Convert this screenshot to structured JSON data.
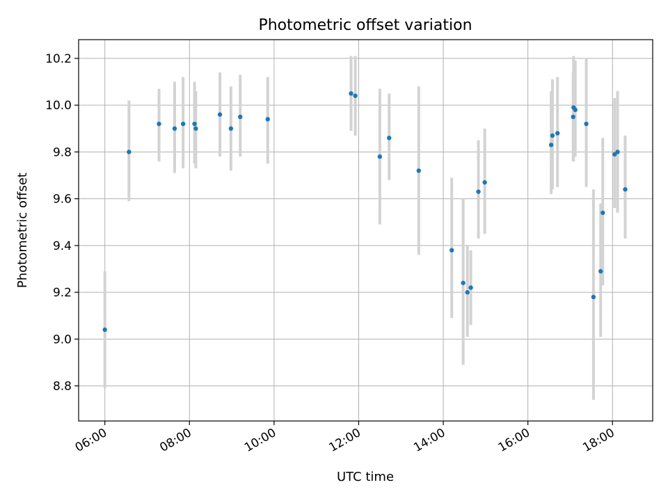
{
  "chart_data": {
    "type": "scatter",
    "title": "Photometric offset variation",
    "xlabel": "UTC time",
    "ylabel": "Photometric offset",
    "x_unit": "hours (UTC)",
    "xlim": [
      5.38,
      18.95
    ],
    "ylim": [
      8.65,
      10.28
    ],
    "grid": true,
    "x_ticks": [
      {
        "value": 6,
        "label": "06:00"
      },
      {
        "value": 8,
        "label": "08:00"
      },
      {
        "value": 10,
        "label": "10:00"
      },
      {
        "value": 12,
        "label": "12:00"
      },
      {
        "value": 14,
        "label": "14:00"
      },
      {
        "value": 16,
        "label": "16:00"
      },
      {
        "value": 18,
        "label": "18:00"
      }
    ],
    "y_ticks": [
      {
        "value": 8.8,
        "label": "8.8"
      },
      {
        "value": 9.0,
        "label": "9.0"
      },
      {
        "value": 9.2,
        "label": "9.2"
      },
      {
        "value": 9.4,
        "label": "9.4"
      },
      {
        "value": 9.6,
        "label": "9.6"
      },
      {
        "value": 9.8,
        "label": "9.8"
      },
      {
        "value": 10.0,
        "label": "10.0"
      },
      {
        "value": 10.2,
        "label": "10.2"
      }
    ],
    "point_color": "#1f77b4",
    "errorbar_color": "#d3d3d3",
    "points": [
      {
        "x": 6.0,
        "y": 9.04,
        "ymin": 8.79,
        "ymax": 9.29
      },
      {
        "x": 6.57,
        "y": 9.8,
        "ymin": 9.59,
        "ymax": 10.02
      },
      {
        "x": 7.28,
        "y": 9.92,
        "ymin": 9.76,
        "ymax": 10.07
      },
      {
        "x": 7.65,
        "y": 9.9,
        "ymin": 9.71,
        "ymax": 10.1
      },
      {
        "x": 7.85,
        "y": 9.92,
        "ymin": 9.73,
        "ymax": 10.12
      },
      {
        "x": 8.12,
        "y": 9.92,
        "ymin": 9.75,
        "ymax": 10.1
      },
      {
        "x": 8.15,
        "y": 9.9,
        "ymin": 9.73,
        "ymax": 10.06
      },
      {
        "x": 8.72,
        "y": 9.96,
        "ymin": 9.78,
        "ymax": 10.14
      },
      {
        "x": 8.98,
        "y": 9.9,
        "ymin": 9.72,
        "ymax": 10.08
      },
      {
        "x": 9.2,
        "y": 9.95,
        "ymin": 9.78,
        "ymax": 10.13
      },
      {
        "x": 9.85,
        "y": 9.94,
        "ymin": 9.75,
        "ymax": 10.12
      },
      {
        "x": 11.82,
        "y": 10.05,
        "ymin": 9.89,
        "ymax": 10.21
      },
      {
        "x": 11.92,
        "y": 10.04,
        "ymin": 9.87,
        "ymax": 10.21
      },
      {
        "x": 12.5,
        "y": 9.78,
        "ymin": 9.49,
        "ymax": 10.07
      },
      {
        "x": 12.72,
        "y": 9.86,
        "ymin": 9.68,
        "ymax": 10.05
      },
      {
        "x": 13.42,
        "y": 9.72,
        "ymin": 9.36,
        "ymax": 10.08
      },
      {
        "x": 14.2,
        "y": 9.38,
        "ymin": 9.09,
        "ymax": 9.69
      },
      {
        "x": 14.47,
        "y": 9.24,
        "ymin": 8.89,
        "ymax": 9.6
      },
      {
        "x": 14.57,
        "y": 9.2,
        "ymin": 9.01,
        "ymax": 9.4
      },
      {
        "x": 14.65,
        "y": 9.22,
        "ymin": 9.06,
        "ymax": 9.38
      },
      {
        "x": 14.83,
        "y": 9.63,
        "ymin": 9.43,
        "ymax": 9.85
      },
      {
        "x": 14.98,
        "y": 9.67,
        "ymin": 9.45,
        "ymax": 9.9
      },
      {
        "x": 16.55,
        "y": 9.83,
        "ymin": 9.62,
        "ymax": 10.06
      },
      {
        "x": 16.58,
        "y": 9.87,
        "ymin": 9.64,
        "ymax": 10.11
      },
      {
        "x": 16.7,
        "y": 9.88,
        "ymin": 9.65,
        "ymax": 10.12
      },
      {
        "x": 17.07,
        "y": 9.95,
        "ymin": 9.76,
        "ymax": 10.14
      },
      {
        "x": 17.08,
        "y": 9.99,
        "ymin": 9.76,
        "ymax": 10.21
      },
      {
        "x": 17.12,
        "y": 9.98,
        "ymin": 9.78,
        "ymax": 10.19
      },
      {
        "x": 17.38,
        "y": 9.92,
        "ymin": 9.65,
        "ymax": 10.2
      },
      {
        "x": 17.55,
        "y": 9.18,
        "ymin": 8.74,
        "ymax": 9.64
      },
      {
        "x": 17.72,
        "y": 9.29,
        "ymin": 9.01,
        "ymax": 9.58
      },
      {
        "x": 17.77,
        "y": 9.54,
        "ymin": 9.23,
        "ymax": 9.86
      },
      {
        "x": 18.05,
        "y": 9.79,
        "ymin": 9.56,
        "ymax": 10.03
      },
      {
        "x": 18.12,
        "y": 9.8,
        "ymin": 9.54,
        "ymax": 10.06
      },
      {
        "x": 18.3,
        "y": 9.64,
        "ymin": 9.43,
        "ymax": 9.87
      }
    ]
  }
}
